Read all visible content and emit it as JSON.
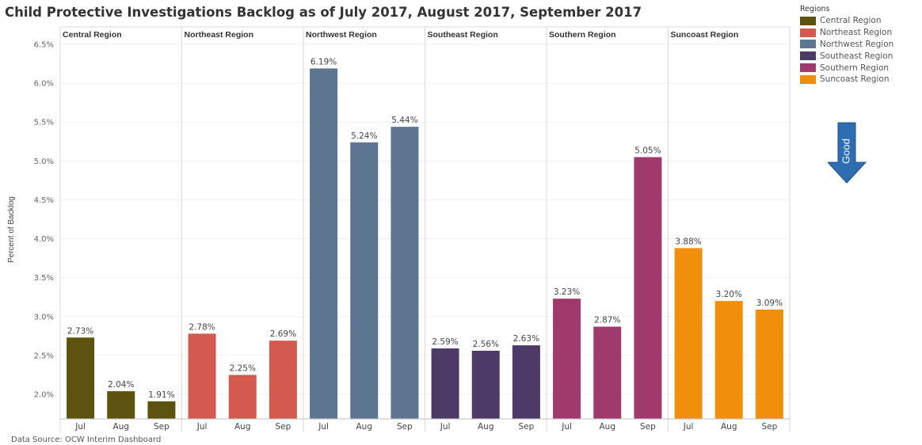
{
  "title": "Child Protective Investigations Backlog as of July 2017, August 2017, September 2017",
  "source": "Data Source:  OCW Interim Dashboard",
  "legend": {
    "title": "Regions",
    "items": [
      {
        "label": "Central Region",
        "color": "#5c5310"
      },
      {
        "label": "Northeast Region",
        "color": "#d35a4e"
      },
      {
        "label": "Northwest Region",
        "color": "#5d7591"
      },
      {
        "label": "Southeast Region",
        "color": "#4e3a66"
      },
      {
        "label": "Southern Region",
        "color": "#a0396c"
      },
      {
        "label": "Suncoast Region",
        "color": "#f18e0c"
      }
    ]
  },
  "indicator": {
    "label": "Good",
    "color": "#2e6db0",
    "icon": "down-arrow-icon"
  },
  "chart_data": {
    "type": "bar",
    "title": "Child Protective Investigations Backlog as of July 2017, August 2017, September 2017",
    "ylabel": "Percent of Backlog",
    "xlabel": "",
    "ylim": [
      1.7,
      6.5
    ],
    "yticks": [
      "2.0%",
      "2.5%",
      "3.0%",
      "3.5%",
      "4.0%",
      "4.5%",
      "5.0%",
      "5.5%",
      "6.0%",
      "6.5%"
    ],
    "ytick_values": [
      2.0,
      2.5,
      3.0,
      3.5,
      4.0,
      4.5,
      5.0,
      5.5,
      6.0,
      6.5
    ],
    "categories": [
      "Jul",
      "Aug",
      "Sep"
    ],
    "grid": true,
    "legend_position": "top-right",
    "panels": [
      {
        "name": "Central Region",
        "color": "#5c5310",
        "values": [
          2.73,
          2.04,
          1.91
        ],
        "labels": [
          "2.73%",
          "2.04%",
          "1.91%"
        ]
      },
      {
        "name": "Northeast Region",
        "color": "#d35a4e",
        "values": [
          2.78,
          2.25,
          2.69
        ],
        "labels": [
          "2.78%",
          "2.25%",
          "2.69%"
        ]
      },
      {
        "name": "Northwest Region",
        "color": "#5d7591",
        "values": [
          6.19,
          5.24,
          5.44
        ],
        "labels": [
          "6.19%",
          "5.24%",
          "5.44%"
        ]
      },
      {
        "name": "Southeast Region",
        "color": "#4e3a66",
        "values": [
          2.59,
          2.56,
          2.63
        ],
        "labels": [
          "2.59%",
          "2.56%",
          "2.63%"
        ]
      },
      {
        "name": "Southern Region",
        "color": "#a0396c",
        "values": [
          3.23,
          2.87,
          5.05
        ],
        "labels": [
          "3.23%",
          "2.87%",
          "5.05%"
        ]
      },
      {
        "name": "Suncoast Region",
        "color": "#f18e0c",
        "values": [
          3.88,
          3.2,
          3.09
        ],
        "labels": [
          "3.88%",
          "3.20%",
          "3.09%"
        ]
      }
    ]
  }
}
